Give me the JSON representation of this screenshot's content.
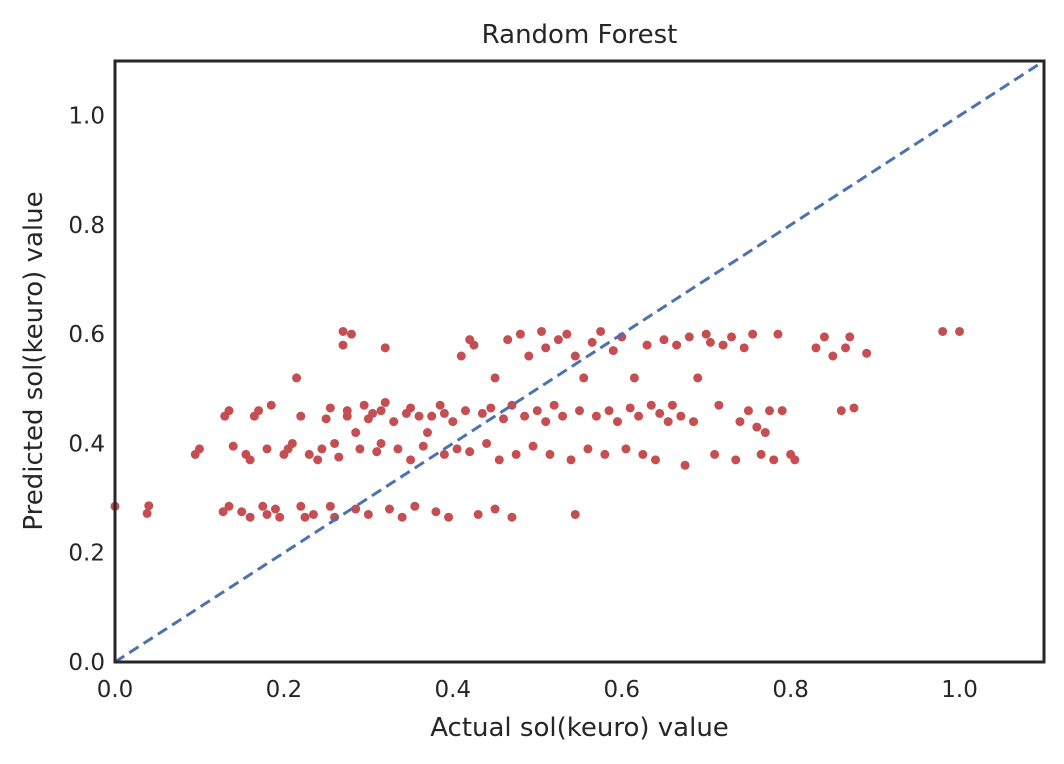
{
  "chart_data": {
    "type": "scatter",
    "title": "Random Forest",
    "xlabel": "Actual sol(keuro) value",
    "ylabel": "Predicted sol(keuro) value",
    "xlim": [
      0.0,
      1.1
    ],
    "ylim": [
      0.0,
      1.1
    ],
    "xticks": [
      "0.0",
      "0.2",
      "0.4",
      "0.6",
      "0.8",
      "1.0"
    ],
    "yticks": [
      "0.0",
      "0.2",
      "0.4",
      "0.6",
      "0.8",
      "1.0"
    ],
    "grid": false,
    "colors": {
      "points": "#c44e52",
      "reference": "#4c72b0",
      "frame": "#262626"
    },
    "reference_line": {
      "style": "dashed",
      "x": [
        0.0,
        1.1
      ],
      "y": [
        0.0,
        1.1
      ]
    },
    "series": [
      {
        "marker": "circle",
        "points": [
          [
            0.0,
            0.285
          ],
          [
            0.038,
            0.272
          ],
          [
            0.04,
            0.286
          ],
          [
            0.095,
            0.38
          ],
          [
            0.1,
            0.39
          ],
          [
            0.128,
            0.275
          ],
          [
            0.135,
            0.285
          ],
          [
            0.13,
            0.45
          ],
          [
            0.135,
            0.46
          ],
          [
            0.14,
            0.395
          ],
          [
            0.15,
            0.275
          ],
          [
            0.16,
            0.265
          ],
          [
            0.155,
            0.38
          ],
          [
            0.16,
            0.37
          ],
          [
            0.165,
            0.45
          ],
          [
            0.17,
            0.46
          ],
          [
            0.175,
            0.285
          ],
          [
            0.18,
            0.27
          ],
          [
            0.18,
            0.39
          ],
          [
            0.185,
            0.47
          ],
          [
            0.19,
            0.28
          ],
          [
            0.195,
            0.265
          ],
          [
            0.2,
            0.38
          ],
          [
            0.205,
            0.39
          ],
          [
            0.21,
            0.4
          ],
          [
            0.215,
            0.52
          ],
          [
            0.22,
            0.285
          ],
          [
            0.22,
            0.45
          ],
          [
            0.225,
            0.265
          ],
          [
            0.23,
            0.38
          ],
          [
            0.235,
            0.27
          ],
          [
            0.24,
            0.37
          ],
          [
            0.245,
            0.39
          ],
          [
            0.25,
            0.445
          ],
          [
            0.255,
            0.465
          ],
          [
            0.255,
            0.285
          ],
          [
            0.26,
            0.265
          ],
          [
            0.26,
            0.4
          ],
          [
            0.265,
            0.375
          ],
          [
            0.27,
            0.605
          ],
          [
            0.27,
            0.58
          ],
          [
            0.275,
            0.46
          ],
          [
            0.275,
            0.45
          ],
          [
            0.28,
            0.6
          ],
          [
            0.285,
            0.28
          ],
          [
            0.285,
            0.42
          ],
          [
            0.29,
            0.39
          ],
          [
            0.295,
            0.47
          ],
          [
            0.3,
            0.445
          ],
          [
            0.3,
            0.27
          ],
          [
            0.305,
            0.455
          ],
          [
            0.31,
            0.385
          ],
          [
            0.315,
            0.4
          ],
          [
            0.315,
            0.46
          ],
          [
            0.32,
            0.475
          ],
          [
            0.32,
            0.575
          ],
          [
            0.325,
            0.28
          ],
          [
            0.33,
            0.44
          ],
          [
            0.335,
            0.39
          ],
          [
            0.34,
            0.265
          ],
          [
            0.345,
            0.455
          ],
          [
            0.35,
            0.37
          ],
          [
            0.35,
            0.465
          ],
          [
            0.355,
            0.285
          ],
          [
            0.36,
            0.45
          ],
          [
            0.365,
            0.395
          ],
          [
            0.37,
            0.42
          ],
          [
            0.375,
            0.45
          ],
          [
            0.38,
            0.275
          ],
          [
            0.385,
            0.47
          ],
          [
            0.39,
            0.38
          ],
          [
            0.39,
            0.455
          ],
          [
            0.395,
            0.265
          ],
          [
            0.4,
            0.44
          ],
          [
            0.405,
            0.39
          ],
          [
            0.41,
            0.56
          ],
          [
            0.415,
            0.46
          ],
          [
            0.42,
            0.385
          ],
          [
            0.42,
            0.59
          ],
          [
            0.425,
            0.58
          ],
          [
            0.43,
            0.27
          ],
          [
            0.435,
            0.455
          ],
          [
            0.44,
            0.4
          ],
          [
            0.445,
            0.465
          ],
          [
            0.45,
            0.52
          ],
          [
            0.45,
            0.28
          ],
          [
            0.455,
            0.37
          ],
          [
            0.46,
            0.445
          ],
          [
            0.465,
            0.59
          ],
          [
            0.47,
            0.265
          ],
          [
            0.47,
            0.47
          ],
          [
            0.475,
            0.38
          ],
          [
            0.48,
            0.6
          ],
          [
            0.485,
            0.45
          ],
          [
            0.49,
            0.56
          ],
          [
            0.495,
            0.395
          ],
          [
            0.5,
            0.46
          ],
          [
            0.505,
            0.605
          ],
          [
            0.51,
            0.44
          ],
          [
            0.51,
            0.575
          ],
          [
            0.515,
            0.38
          ],
          [
            0.52,
            0.47
          ],
          [
            0.525,
            0.59
          ],
          [
            0.53,
            0.45
          ],
          [
            0.535,
            0.6
          ],
          [
            0.54,
            0.37
          ],
          [
            0.545,
            0.27
          ],
          [
            0.545,
            0.56
          ],
          [
            0.55,
            0.46
          ],
          [
            0.555,
            0.52
          ],
          [
            0.56,
            0.39
          ],
          [
            0.565,
            0.585
          ],
          [
            0.57,
            0.45
          ],
          [
            0.575,
            0.605
          ],
          [
            0.58,
            0.38
          ],
          [
            0.585,
            0.46
          ],
          [
            0.59,
            0.57
          ],
          [
            0.595,
            0.44
          ],
          [
            0.6,
            0.595
          ],
          [
            0.605,
            0.39
          ],
          [
            0.61,
            0.465
          ],
          [
            0.615,
            0.52
          ],
          [
            0.62,
            0.45
          ],
          [
            0.625,
            0.38
          ],
          [
            0.63,
            0.58
          ],
          [
            0.635,
            0.47
          ],
          [
            0.64,
            0.37
          ],
          [
            0.645,
            0.455
          ],
          [
            0.65,
            0.59
          ],
          [
            0.655,
            0.44
          ],
          [
            0.66,
            0.47
          ],
          [
            0.665,
            0.58
          ],
          [
            0.67,
            0.45
          ],
          [
            0.675,
            0.36
          ],
          [
            0.68,
            0.595
          ],
          [
            0.685,
            0.44
          ],
          [
            0.69,
            0.52
          ],
          [
            0.7,
            0.6
          ],
          [
            0.705,
            0.585
          ],
          [
            0.71,
            0.38
          ],
          [
            0.715,
            0.47
          ],
          [
            0.72,
            0.58
          ],
          [
            0.73,
            0.595
          ],
          [
            0.735,
            0.37
          ],
          [
            0.74,
            0.44
          ],
          [
            0.745,
            0.575
          ],
          [
            0.75,
            0.46
          ],
          [
            0.755,
            0.6
          ],
          [
            0.76,
            0.43
          ],
          [
            0.765,
            0.38
          ],
          [
            0.77,
            0.42
          ],
          [
            0.775,
            0.46
          ],
          [
            0.78,
            0.37
          ],
          [
            0.785,
            0.6
          ],
          [
            0.79,
            0.46
          ],
          [
            0.8,
            0.38
          ],
          [
            0.805,
            0.37
          ],
          [
            0.83,
            0.575
          ],
          [
            0.84,
            0.595
          ],
          [
            0.85,
            0.56
          ],
          [
            0.86,
            0.46
          ],
          [
            0.865,
            0.575
          ],
          [
            0.87,
            0.595
          ],
          [
            0.875,
            0.465
          ],
          [
            0.89,
            0.565
          ],
          [
            0.98,
            0.605
          ],
          [
            1.0,
            0.605
          ]
        ]
      }
    ]
  }
}
